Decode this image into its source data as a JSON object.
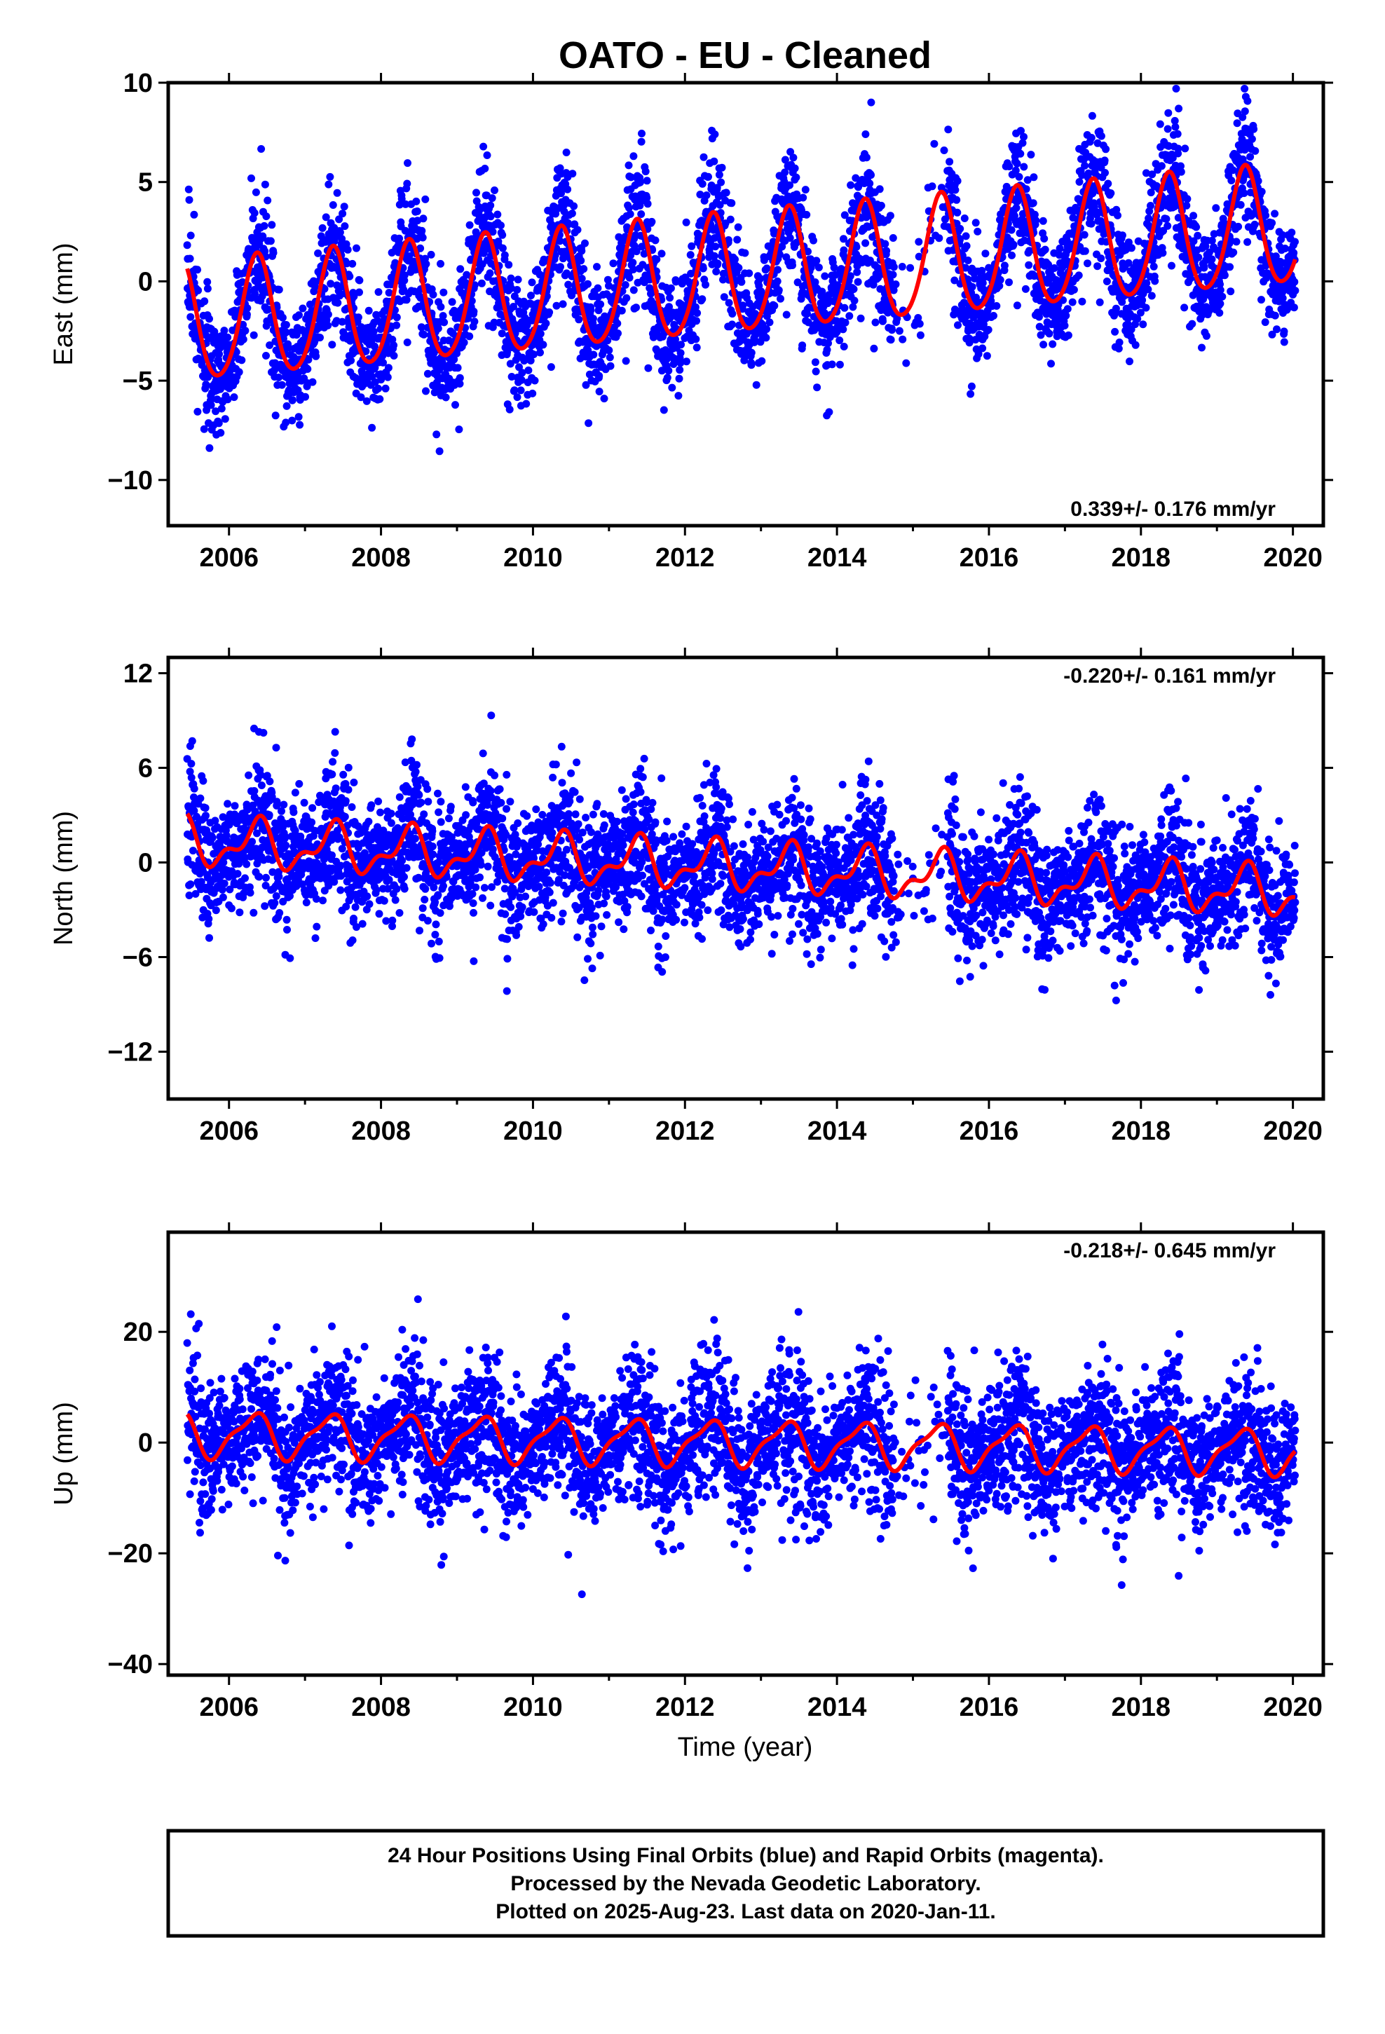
{
  "colors": {
    "data_points": "#0000ff",
    "fit_line": "#ff0000",
    "frame": "#000000"
  },
  "chart_data": {
    "title": "OATO  - EU - Cleaned",
    "type": "scatter",
    "x_axis": {
      "label": "Time (year)",
      "range": [
        2005.2,
        2020.4
      ],
      "ticks": [
        2006,
        2008,
        2010,
        2012,
        2014,
        2016,
        2018,
        2020
      ],
      "tick_labels": [
        "2006",
        "2008",
        "2010",
        "2012",
        "2014",
        "2016",
        "2018",
        "2020"
      ],
      "first_epoch": 2005.45,
      "last_epoch": 2020.03
    },
    "panels": [
      {
        "ylabel": "East (mm)",
        "ylim": [
          -12.3,
          10
        ],
        "yticks": [
          10,
          5,
          0,
          -5,
          -10
        ],
        "ytick_labels": [
          "10",
          "5",
          "0",
          "−5",
          "−10"
        ],
        "rate": "0.339+/- 0.176 mm/yr",
        "rate_position": "bottom-right",
        "fit": {
          "trend_mm_per_yr": 0.339,
          "offset_mm": -2.2,
          "annual_amp": 3.0,
          "annual_phase": 5.55,
          "semiannual_amp": 0.35,
          "semiannual_phase": 3.0
        },
        "scatter_sigma": 1.4,
        "series": [
          {
            "name": "Final Orbits",
            "color": "#0000ff"
          },
          {
            "name": "Model fit",
            "color": "#ff0000"
          }
        ]
      },
      {
        "ylabel": "North (mm)",
        "ylim": [
          -15,
          13
        ],
        "yticks": [
          12,
          6,
          0,
          -6,
          -12
        ],
        "ytick_labels": [
          "12",
          "6",
          "0",
          "−6",
          "−12"
        ],
        "rate": "-0.220+/- 0.161 mm/yr",
        "rate_position": "top-right",
        "fit": {
          "trend_mm_per_yr": -0.22,
          "offset_mm": 1.3,
          "annual_amp": 1.3,
          "annual_phase": 5.6,
          "semiannual_amp": 0.7,
          "semiannual_phase": 2.3
        },
        "scatter_sigma": 1.8,
        "series": [
          {
            "name": "Final Orbits",
            "color": "#0000ff"
          },
          {
            "name": "Model fit",
            "color": "#ff0000"
          }
        ]
      },
      {
        "ylabel": "Up (mm)",
        "ylim": [
          -42,
          38
        ],
        "yticks": [
          20,
          0,
          -20,
          -40
        ],
        "ytick_labels": [
          "20",
          "0",
          "−20",
          "−40"
        ],
        "rate": "-0.218+/- 0.645 mm/yr",
        "rate_position": "top-right",
        "fit": {
          "trend_mm_per_yr": -0.218,
          "offset_mm": 1.5,
          "annual_amp": 3.8,
          "annual_phase": 5.9,
          "semiannual_amp": 1.2,
          "semiannual_phase": 2.0
        },
        "scatter_sigma": 5.5,
        "series": [
          {
            "name": "Final Orbits",
            "color": "#0000ff"
          },
          {
            "name": "Model fit",
            "color": "#ff0000"
          }
        ]
      }
    ]
  },
  "footer": {
    "line1": "24 Hour Positions Using Final Orbits (blue) and Rapid Orbits (magenta).",
    "line2": "Processed by the Nevada Geodetic Laboratory.",
    "line3": "Plotted on 2025-Aug-23. Last data on 2020-Jan-11."
  }
}
